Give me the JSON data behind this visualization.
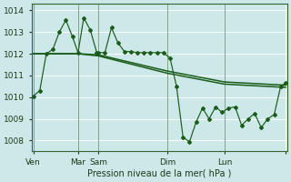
{
  "background_color": "#cce8e8",
  "grid_color": "#b0d8d8",
  "line_color": "#1a5c1a",
  "title": "Pression niveau de la mer( hPa )",
  "ylim": [
    1007.5,
    1014.3
  ],
  "yticks": [
    1008,
    1009,
    1010,
    1011,
    1012,
    1013,
    1014
  ],
  "xtick_pos": [
    0,
    55,
    80,
    165,
    235,
    310
  ],
  "xtick_labels": [
    "Ven",
    "Mar",
    "Sam",
    "Dim",
    "Lun",
    ""
  ],
  "vline_pos": [
    0,
    55,
    80,
    165,
    235
  ],
  "detail_x": [
    0,
    8,
    16,
    24,
    32,
    40,
    48,
    55,
    62,
    70,
    78,
    80,
    88,
    96,
    104,
    112,
    120,
    128,
    136,
    144,
    152,
    160,
    168,
    176,
    184,
    192,
    200,
    208,
    216,
    224,
    232,
    240,
    248,
    256,
    264,
    272,
    280,
    288,
    296,
    304,
    310
  ],
  "detail_y": [
    1010.05,
    1010.3,
    1012.0,
    1012.2,
    1013.0,
    1013.55,
    1012.8,
    1012.05,
    1013.65,
    1013.1,
    1012.05,
    1012.05,
    1012.05,
    1013.2,
    1012.5,
    1012.1,
    1012.1,
    1012.05,
    1012.05,
    1012.05,
    1012.05,
    1012.05,
    1011.8,
    1010.5,
    1008.15,
    1007.95,
    1008.85,
    1009.5,
    1009.0,
    1009.55,
    1009.3,
    1009.5,
    1009.55,
    1008.7,
    1009.0,
    1009.25,
    1008.6,
    1009.0,
    1009.2,
    1010.5,
    1010.65
  ],
  "trend1_x": [
    0,
    55,
    80,
    165,
    235,
    310
  ],
  "trend1_y": [
    1012.0,
    1012.0,
    1011.95,
    1011.2,
    1010.7,
    1010.55
  ],
  "trend2_x": [
    0,
    55,
    80,
    165,
    235,
    310
  ],
  "trend2_y": [
    1012.0,
    1012.0,
    1011.9,
    1011.1,
    1010.6,
    1010.45
  ]
}
